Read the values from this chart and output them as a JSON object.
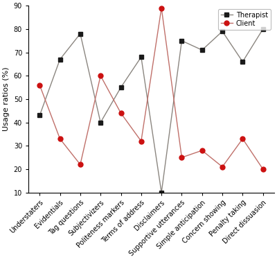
{
  "categories": [
    "Understaters",
    "Evidentials",
    "Tag questions",
    "Subjectivizers",
    "Politeness markers",
    "Terms of address",
    "Disclaimers",
    "Supportive utterances",
    "Simple anticipation",
    "Concern showing",
    "Penalty taking",
    "Direct dissuasion"
  ],
  "therapist": [
    43,
    67,
    78,
    40,
    55,
    68,
    10,
    75,
    71,
    79,
    66,
    80
  ],
  "client": [
    56,
    33,
    22,
    60,
    44,
    32,
    89,
    25,
    28,
    21,
    33,
    20
  ],
  "therapist_line_color": "#8b8680",
  "client_line_color": "#c0706a",
  "therapist_marker_color": "#1a1a1a",
  "client_marker_color": "#cc1111",
  "therapist_marker": "s",
  "client_marker": "o",
  "ylabel": "Usage ratios (%)",
  "ylim": [
    10,
    90
  ],
  "yticks": [
    10,
    20,
    30,
    40,
    50,
    60,
    70,
    80,
    90
  ],
  "legend_therapist": "Therapist",
  "legend_client": "Client",
  "bg_color": "#ffffff",
  "marker_size": 5,
  "line_width": 1.0,
  "tick_fontsize": 7,
  "ylabel_fontsize": 8,
  "legend_fontsize": 7
}
